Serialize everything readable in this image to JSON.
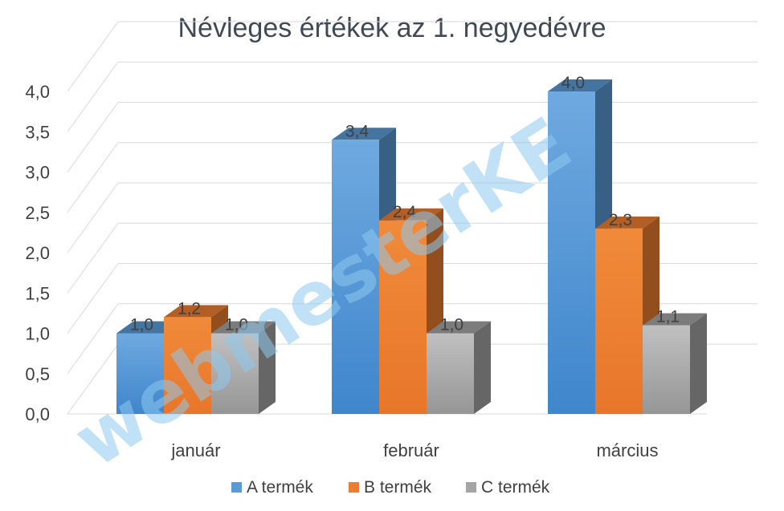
{
  "chart_data": {
    "type": "bar",
    "title": "Névleges értékek az 1. negyedévre",
    "categories": [
      "január",
      "február",
      "március"
    ],
    "series": [
      {
        "name": "A termék",
        "values": [
          1.0,
          3.4,
          4.0
        ],
        "labels": [
          "1,0",
          "3,4",
          "4,0"
        ]
      },
      {
        "name": "B termék",
        "values": [
          1.2,
          2.4,
          2.3
        ],
        "labels": [
          "1,2",
          "2,4",
          "2,3"
        ]
      },
      {
        "name": "C termék",
        "values": [
          1.0,
          1.0,
          1.1
        ],
        "labels": [
          "1,0",
          "1,0",
          "1,1"
        ]
      }
    ],
    "y_ticks": [
      "0,0",
      "0,5",
      "1,0",
      "1,5",
      "2,0",
      "2,5",
      "3,0",
      "3,5",
      "4,0"
    ],
    "ylim": [
      0,
      4.0
    ],
    "grid": true,
    "legend_position": "bottom",
    "style": "3d-column"
  },
  "colors": {
    "A termék": "#5b9bd5",
    "B termék": "#ed7d31",
    "C termék": "#a5a5a5",
    "grid": "#d9d9d9",
    "text": "#404040",
    "watermark": "#8ec9f0"
  },
  "watermark": {
    "text": "webmesterKE"
  }
}
